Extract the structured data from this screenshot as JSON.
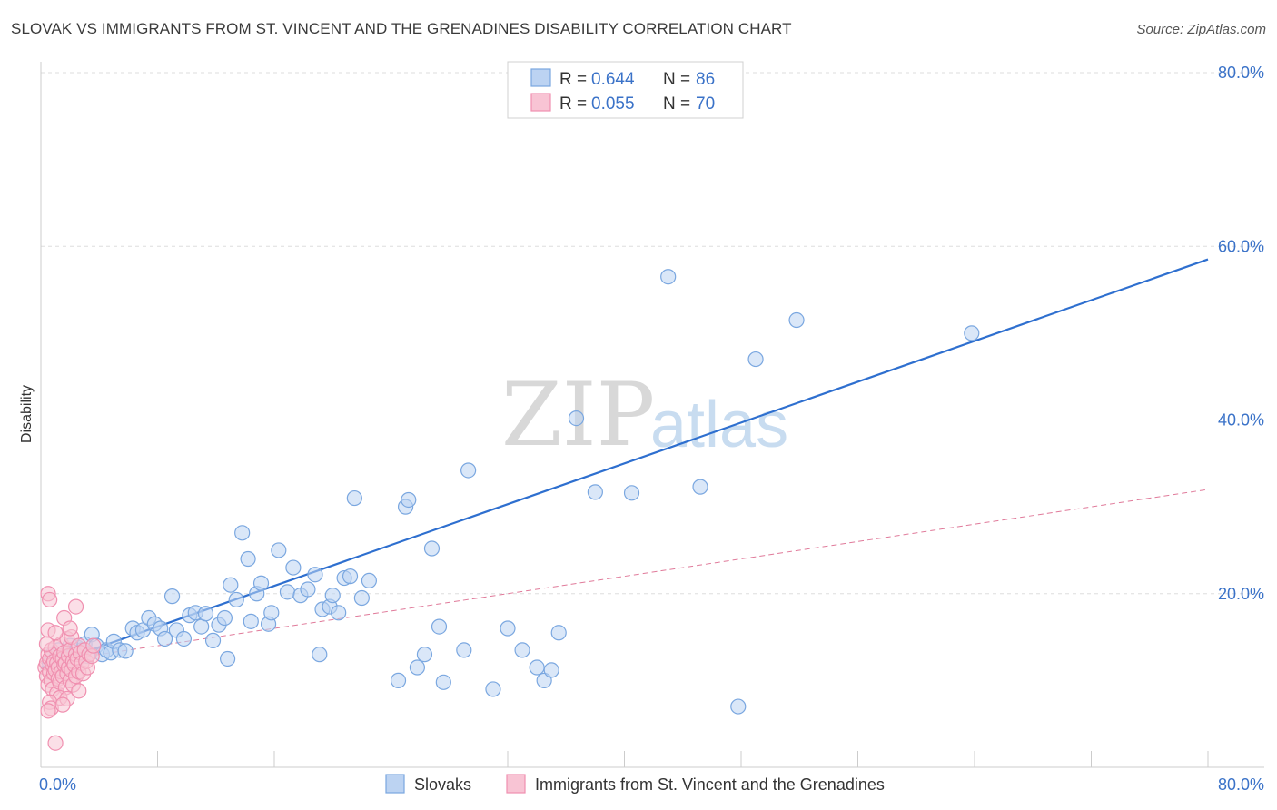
{
  "header": {
    "title": "SLOVAK VS IMMIGRANTS FROM ST. VINCENT AND THE GRENADINES DISABILITY CORRELATION CHART",
    "source": "Source: ZipAtlas.com"
  },
  "watermark": {
    "part1": "ZIP",
    "part2": "atlas"
  },
  "chart_data": {
    "type": "scatter",
    "ylabel": "Disability",
    "xlim": [
      0,
      80
    ],
    "ylim": [
      0,
      80
    ],
    "x_tick_labels": [
      {
        "value": 0,
        "label": "0.0%"
      },
      {
        "value": 80,
        "label": "80.0%"
      }
    ],
    "y_tick_labels": [
      {
        "value": 20,
        "label": "20.0%"
      },
      {
        "value": 40,
        "label": "40.0%"
      },
      {
        "value": 60,
        "label": "60.0%"
      },
      {
        "value": 80,
        "label": "80.0%"
      }
    ],
    "y_gridlines": [
      20,
      40,
      60,
      80
    ],
    "x_minor_ticks": [
      8,
      16,
      24,
      32,
      40,
      48,
      56,
      64,
      72,
      80
    ],
    "grid": true,
    "legend_position": "top-center",
    "series": [
      {
        "name": "Slovaks",
        "color": "#7aa7e0",
        "fill": "#bcd3f2",
        "R_label": "R =",
        "R": "0.644",
        "N_label": "N =",
        "N": "86",
        "trend": {
          "x": [
            0,
            80
          ],
          "y": [
            11.5,
            58.5
          ],
          "color": "#2e6fcf",
          "style": "solid"
        },
        "points": [
          [
            0.6,
            12.0
          ],
          [
            0.8,
            13.0
          ],
          [
            1.0,
            12.5
          ],
          [
            1.2,
            13.5
          ],
          [
            1.4,
            12.0
          ],
          [
            1.6,
            12.8
          ],
          [
            1.8,
            13.2
          ],
          [
            2.0,
            14.0
          ],
          [
            2.2,
            13.0
          ],
          [
            2.5,
            13.8
          ],
          [
            2.8,
            13.5
          ],
          [
            3.0,
            14.2
          ],
          [
            3.2,
            12.8
          ],
          [
            3.5,
            15.3
          ],
          [
            3.8,
            14.0
          ],
          [
            4.2,
            13.0
          ],
          [
            4.5,
            13.5
          ],
          [
            4.8,
            13.2
          ],
          [
            5.0,
            14.5
          ],
          [
            5.4,
            13.5
          ],
          [
            5.8,
            13.4
          ],
          [
            6.3,
            16.0
          ],
          [
            6.6,
            15.5
          ],
          [
            7.0,
            15.8
          ],
          [
            7.4,
            17.2
          ],
          [
            7.8,
            16.5
          ],
          [
            8.2,
            16.0
          ],
          [
            8.5,
            14.8
          ],
          [
            9.0,
            19.7
          ],
          [
            9.3,
            15.8
          ],
          [
            9.8,
            14.8
          ],
          [
            10.2,
            17.5
          ],
          [
            10.6,
            17.8
          ],
          [
            11.0,
            16.2
          ],
          [
            11.3,
            17.7
          ],
          [
            11.8,
            14.6
          ],
          [
            12.2,
            16.4
          ],
          [
            12.6,
            17.2
          ],
          [
            12.8,
            12.5
          ],
          [
            13.0,
            21.0
          ],
          [
            13.4,
            19.3
          ],
          [
            13.8,
            27.0
          ],
          [
            14.2,
            24.0
          ],
          [
            14.4,
            16.8
          ],
          [
            14.8,
            20.0
          ],
          [
            15.1,
            21.2
          ],
          [
            15.6,
            16.5
          ],
          [
            15.8,
            17.8
          ],
          [
            16.3,
            25.0
          ],
          [
            16.9,
            20.2
          ],
          [
            17.3,
            23.0
          ],
          [
            17.8,
            19.8
          ],
          [
            18.3,
            20.5
          ],
          [
            18.8,
            22.2
          ],
          [
            19.1,
            13.0
          ],
          [
            19.3,
            18.2
          ],
          [
            19.8,
            18.5
          ],
          [
            20.0,
            19.8
          ],
          [
            20.4,
            17.8
          ],
          [
            20.8,
            21.8
          ],
          [
            21.2,
            22.0
          ],
          [
            21.5,
            31.0
          ],
          [
            22.0,
            19.5
          ],
          [
            22.5,
            21.5
          ],
          [
            24.5,
            10.0
          ],
          [
            25.0,
            30.0
          ],
          [
            25.2,
            30.8
          ],
          [
            25.8,
            11.5
          ],
          [
            26.3,
            13.0
          ],
          [
            26.8,
            25.2
          ],
          [
            27.3,
            16.2
          ],
          [
            27.6,
            9.8
          ],
          [
            29.0,
            13.5
          ],
          [
            29.3,
            34.2
          ],
          [
            31.0,
            9.0
          ],
          [
            32.0,
            16.0
          ],
          [
            33.0,
            13.5
          ],
          [
            34.0,
            11.5
          ],
          [
            34.5,
            10.0
          ],
          [
            35.0,
            11.2
          ],
          [
            35.5,
            15.5
          ],
          [
            36.7,
            40.2
          ],
          [
            38.0,
            31.7
          ],
          [
            40.5,
            31.6
          ],
          [
            45.2,
            32.3
          ],
          [
            47.8,
            7.0
          ]
        ],
        "extra_points": [
          [
            43.0,
            56.5
          ],
          [
            49.0,
            47.0
          ],
          [
            51.8,
            51.5
          ],
          [
            63.8,
            50.0
          ]
        ]
      },
      {
        "name": "Immigrants from St. Vincent and the Grenadines",
        "color": "#f090b0",
        "fill": "#f8c4d4",
        "R_label": "R =",
        "R": "0.055",
        "N_label": "N =",
        "N": "70",
        "trend": {
          "x": [
            0,
            80
          ],
          "y": [
            12.0,
            32.0
          ],
          "color": "#e07a9a",
          "style": "dashed"
        },
        "points": [
          [
            0.3,
            11.5
          ],
          [
            0.4,
            12.0
          ],
          [
            0.4,
            10.5
          ],
          [
            0.5,
            13.0
          ],
          [
            0.5,
            9.5
          ],
          [
            0.6,
            11.0
          ],
          [
            0.6,
            12.5
          ],
          [
            0.7,
            10.0
          ],
          [
            0.7,
            13.5
          ],
          [
            0.8,
            11.8
          ],
          [
            0.8,
            9.0
          ],
          [
            0.9,
            12.2
          ],
          [
            0.9,
            10.8
          ],
          [
            1.0,
            11.2
          ],
          [
            1.0,
            13.8
          ],
          [
            1.1,
            12.0
          ],
          [
            1.1,
            8.5
          ],
          [
            1.2,
            11.5
          ],
          [
            1.2,
            10.2
          ],
          [
            1.3,
            12.8
          ],
          [
            1.3,
            9.8
          ],
          [
            1.4,
            11.0
          ],
          [
            1.4,
            14.2
          ],
          [
            1.5,
            12.5
          ],
          [
            1.5,
            10.5
          ],
          [
            1.6,
            11.8
          ],
          [
            1.6,
            13.2
          ],
          [
            1.7,
            9.2
          ],
          [
            1.7,
            12.0
          ],
          [
            1.8,
            10.8
          ],
          [
            1.8,
            14.8
          ],
          [
            1.9,
            11.5
          ],
          [
            1.9,
            12.8
          ],
          [
            2.0,
            10.0
          ],
          [
            2.0,
            13.5
          ],
          [
            2.1,
            11.2
          ],
          [
            2.1,
            15.0
          ],
          [
            2.2,
            12.2
          ],
          [
            2.2,
            9.5
          ],
          [
            2.3,
            11.8
          ],
          [
            2.4,
            13.0
          ],
          [
            2.4,
            10.5
          ],
          [
            2.5,
            12.5
          ],
          [
            2.6,
            14.0
          ],
          [
            2.6,
            11.0
          ],
          [
            2.7,
            13.2
          ],
          [
            2.8,
            12.0
          ],
          [
            2.9,
            10.8
          ],
          [
            3.0,
            13.5
          ],
          [
            3.1,
            12.2
          ],
          [
            3.2,
            11.5
          ],
          [
            3.3,
            13.0
          ],
          [
            3.5,
            12.8
          ],
          [
            3.6,
            14.0
          ],
          [
            0.5,
            20.0
          ],
          [
            0.6,
            19.3
          ],
          [
            1.6,
            17.2
          ],
          [
            2.4,
            18.5
          ],
          [
            0.5,
            15.8
          ],
          [
            1.0,
            15.5
          ],
          [
            1.3,
            8.0
          ],
          [
            0.6,
            7.5
          ],
          [
            0.7,
            6.8
          ],
          [
            0.5,
            6.5
          ],
          [
            1.8,
            7.9
          ],
          [
            1.0,
            2.8
          ],
          [
            2.6,
            8.8
          ],
          [
            0.4,
            14.2
          ],
          [
            1.5,
            7.2
          ],
          [
            2.0,
            16.0
          ]
        ]
      }
    ]
  }
}
